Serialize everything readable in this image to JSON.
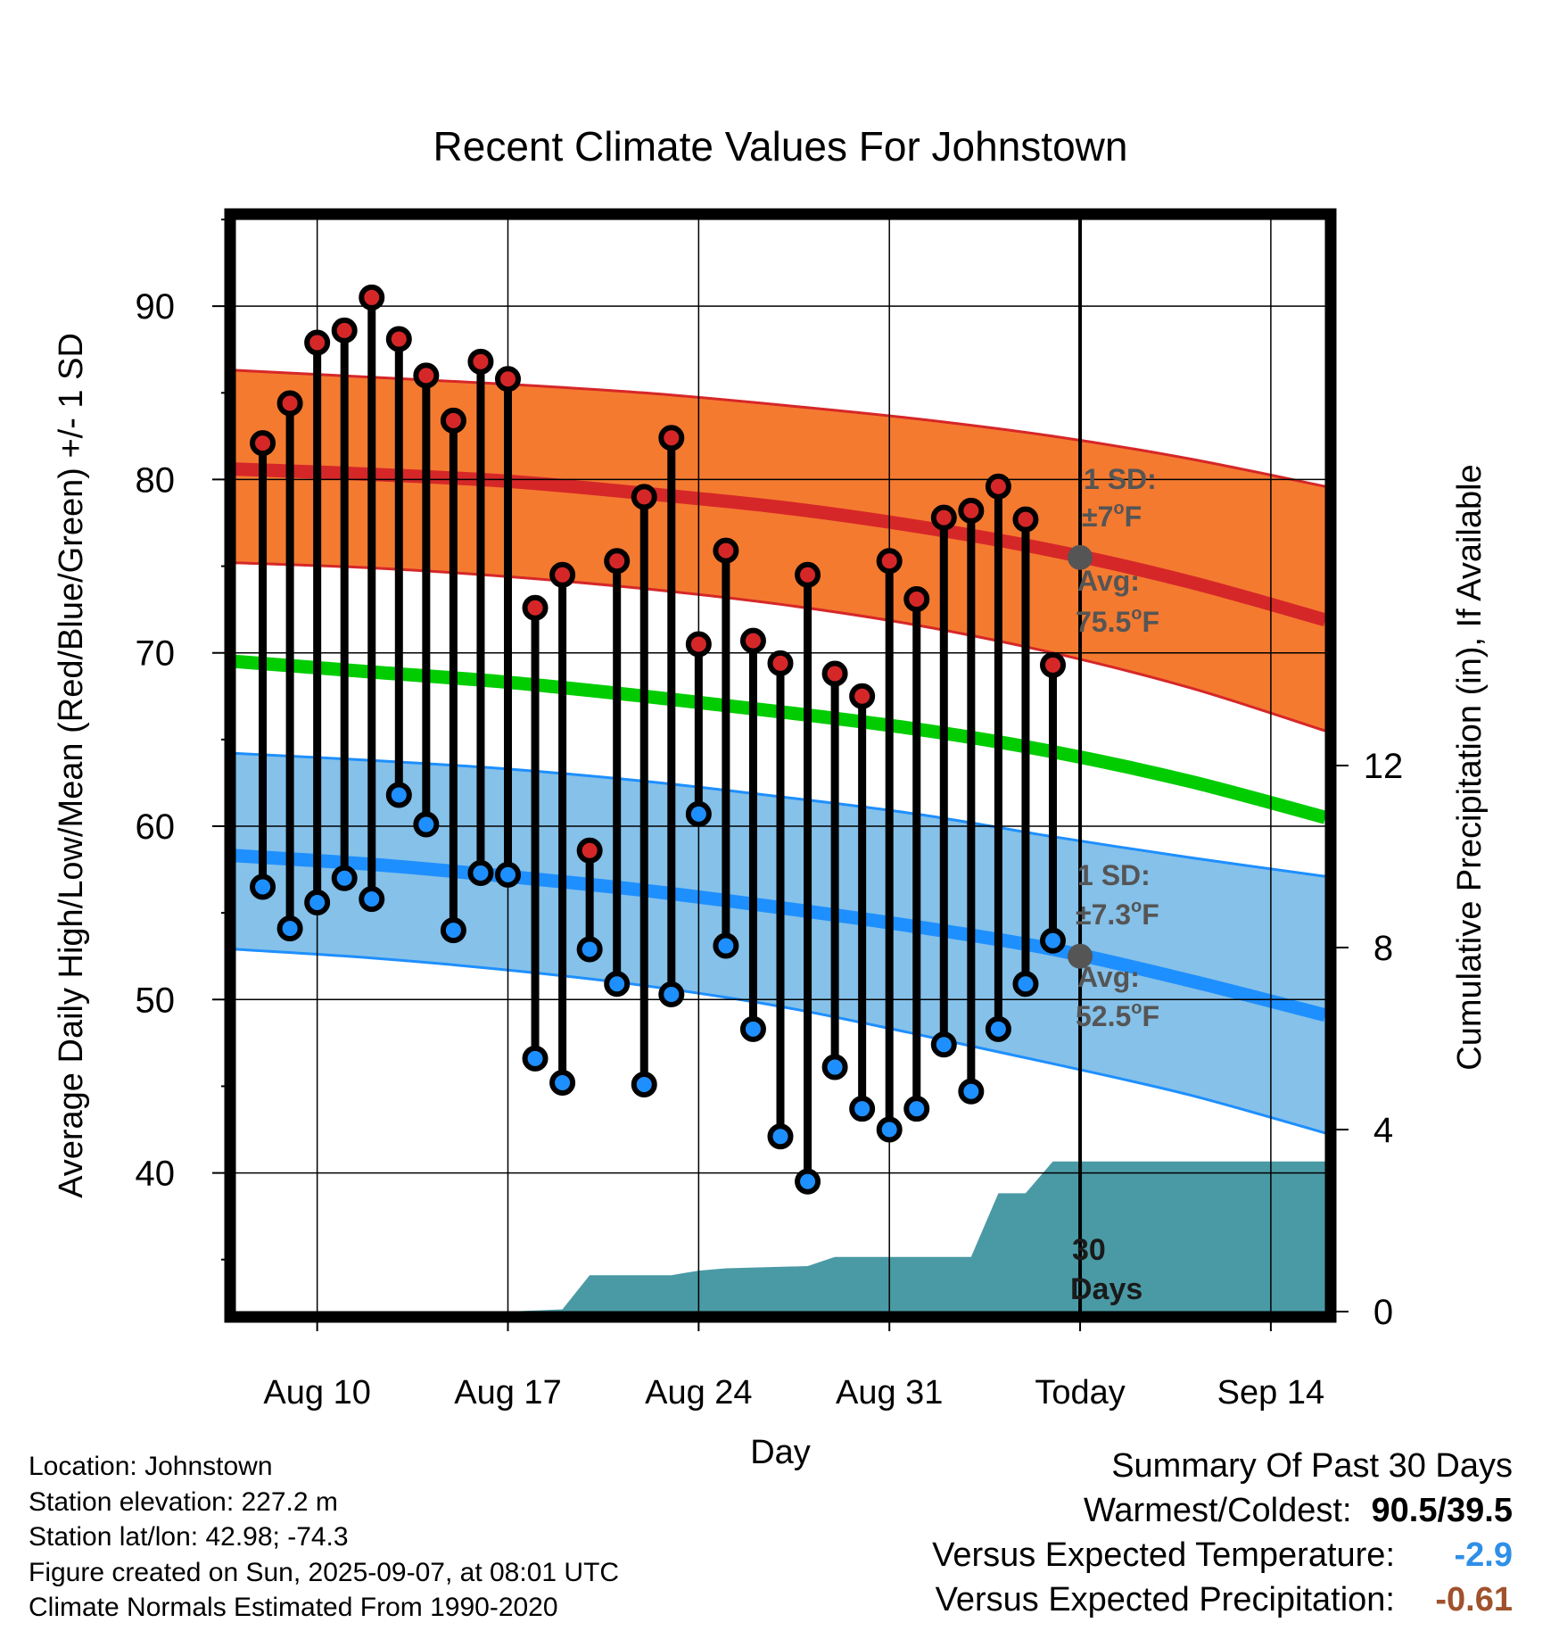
{
  "chart_data": {
    "type": "line",
    "title": "Recent Climate Values For Johnstown",
    "xlabel": "Day",
    "ylabel_left": "Average Daily High/Low/Mean (Red/Blue/Green) +/- 1 SD",
    "ylabel_right": "Cumulative Precipitation (in), If Available",
    "x_range": [
      "2025-08-07",
      "2025-09-16"
    ],
    "y_left_range": [
      32,
      95
    ],
    "y_right_range": [
      0,
      24
    ],
    "x_ticks": [
      {
        "date": "2025-08-10",
        "label": "Aug 10"
      },
      {
        "date": "2025-08-17",
        "label": "Aug 17"
      },
      {
        "date": "2025-08-24",
        "label": "Aug 24"
      },
      {
        "date": "2025-08-31",
        "label": "Aug 31"
      },
      {
        "date": "2025-09-07",
        "label": "Today"
      },
      {
        "date": "2025-09-14",
        "label": "Sep 14"
      }
    ],
    "y_left_ticks": [
      40,
      50,
      60,
      70,
      80,
      90
    ],
    "y_right_ticks": [
      0,
      4,
      8,
      12
    ],
    "grid": true,
    "today": "2025-09-07",
    "normals": {
      "dates": [
        "2025-08-07",
        "2025-08-12",
        "2025-08-17",
        "2025-08-22",
        "2025-08-27",
        "2025-09-01",
        "2025-09-06",
        "2025-09-11",
        "2025-09-16"
      ],
      "high_mean": [
        80.6,
        80.3,
        79.9,
        79.2,
        78.4,
        77.3,
        75.9,
        74.1,
        71.9
      ],
      "high_sd_upper": [
        86.3,
        85.9,
        85.5,
        85.0,
        84.3,
        83.5,
        82.5,
        81.2,
        79.6
      ],
      "high_sd_lower": [
        75.2,
        74.9,
        74.4,
        73.7,
        72.8,
        71.6,
        70.0,
        68.0,
        65.5
      ],
      "mean": [
        69.5,
        68.9,
        68.3,
        67.5,
        66.6,
        65.6,
        64.3,
        62.6,
        60.5
      ],
      "low_mean": [
        58.3,
        57.8,
        57.1,
        56.3,
        55.3,
        54.2,
        52.9,
        51.1,
        49.1
      ],
      "low_sd_upper": [
        64.2,
        63.8,
        63.3,
        62.6,
        61.7,
        60.7,
        59.4,
        58.2,
        57.1
      ],
      "low_sd_lower": [
        52.9,
        52.4,
        51.7,
        50.8,
        49.6,
        48.0,
        46.3,
        44.5,
        42.3
      ]
    },
    "series": [
      {
        "name": "Daily High",
        "dates": [
          "2025-08-08",
          "2025-08-09",
          "2025-08-10",
          "2025-08-11",
          "2025-08-12",
          "2025-08-13",
          "2025-08-14",
          "2025-08-15",
          "2025-08-16",
          "2025-08-17",
          "2025-08-18",
          "2025-08-19",
          "2025-08-20",
          "2025-08-21",
          "2025-08-22",
          "2025-08-23",
          "2025-08-24",
          "2025-08-25",
          "2025-08-26",
          "2025-08-27",
          "2025-08-28",
          "2025-08-29",
          "2025-08-30",
          "2025-08-31",
          "2025-09-01",
          "2025-09-02",
          "2025-09-03",
          "2025-09-04",
          "2025-09-05",
          "2025-09-06"
        ],
        "values": [
          82.1,
          84.4,
          87.9,
          88.6,
          90.5,
          88.1,
          86.0,
          83.4,
          86.8,
          85.8,
          72.6,
          74.5,
          58.6,
          75.3,
          79.0,
          82.4,
          70.5,
          75.9,
          70.7,
          69.4,
          74.5,
          68.8,
          67.5,
          75.3,
          73.1,
          77.8,
          78.2,
          79.6,
          77.7,
          69.3
        ]
      },
      {
        "name": "Daily Low",
        "dates": [
          "2025-08-08",
          "2025-08-09",
          "2025-08-10",
          "2025-08-11",
          "2025-08-12",
          "2025-08-13",
          "2025-08-14",
          "2025-08-15",
          "2025-08-16",
          "2025-08-17",
          "2025-08-18",
          "2025-08-19",
          "2025-08-20",
          "2025-08-21",
          "2025-08-22",
          "2025-08-23",
          "2025-08-24",
          "2025-08-25",
          "2025-08-26",
          "2025-08-27",
          "2025-08-28",
          "2025-08-29",
          "2025-08-30",
          "2025-08-31",
          "2025-09-01",
          "2025-09-02",
          "2025-09-03",
          "2025-09-04",
          "2025-09-05",
          "2025-09-06"
        ],
        "values": [
          56.5,
          54.1,
          55.6,
          57.0,
          55.8,
          61.8,
          60.1,
          54.0,
          57.3,
          57.2,
          46.6,
          45.2,
          52.9,
          50.9,
          45.1,
          50.3,
          60.7,
          53.1,
          48.3,
          42.1,
          39.5,
          46.1,
          43.7,
          42.5,
          43.7,
          47.4,
          44.7,
          48.3,
          50.9,
          53.4
        ]
      },
      {
        "name": "Cumulative Precipitation",
        "dates": [
          "2025-08-07",
          "2025-08-17",
          "2025-08-19",
          "2025-08-20",
          "2025-08-23",
          "2025-08-24",
          "2025-08-25",
          "2025-08-28",
          "2025-08-29",
          "2025-09-03",
          "2025-09-04",
          "2025-09-05",
          "2025-09-06",
          "2025-09-16"
        ],
        "values": [
          0,
          0,
          0.05,
          0.8,
          0.8,
          0.9,
          0.95,
          1.0,
          1.2,
          1.2,
          2.6,
          2.6,
          3.3,
          3.3
        ]
      }
    ],
    "annotations": {
      "high_sd_line1": "1 SD:",
      "high_sd_line2": "±7°F",
      "high_avg_line1": "Avg:",
      "high_avg_line2": "75.5°F",
      "low_sd_line1": "1 SD:",
      "low_sd_line2": "±7.3°F",
      "low_avg_line1": "Avg:",
      "low_avg_line2": "52.5°F",
      "days_line1": "30",
      "days_line2": "Days",
      "high_avg_value": 75.5,
      "low_avg_value": 52.5
    }
  },
  "meta": {
    "location": "Location: Johnstown",
    "elevation": "Station elevation: 227.2 m",
    "latlon": "Station lat/lon: 42.98; -74.3",
    "created": "Figure created on Sun, 2025-09-07, at 08:01 UTC",
    "normals": "Climate Normals Estimated From 1990-2020"
  },
  "summary": {
    "title": "Summary Of Past 30 Days",
    "warmest_label": "Warmest/Coldest:",
    "warmest_value": "90.5/39.5",
    "temp_label": "Versus Expected Temperature:",
    "temp_value": "-2.9",
    "precip_label": "Versus Expected Precipitation:",
    "precip_value": "-0.61"
  },
  "colors": {
    "high_band": "#f47a30",
    "high_line": "#d62728",
    "low_band": "#85c1e9",
    "low_line": "#1e8fff",
    "mean_line": "#00cc00",
    "precip": "#4a9aa5",
    "high_dot": "#d62728",
    "low_dot": "#1e8fff",
    "avg_dot": "#555555",
    "annotation": "#555555"
  }
}
